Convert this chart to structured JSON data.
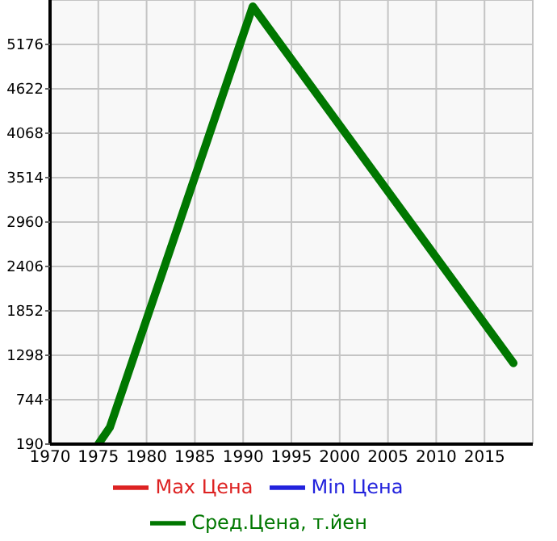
{
  "chart_data": {
    "type": "line",
    "x": [
      1975,
      1976.2,
      1991,
      2018
    ],
    "series": [
      {
        "name": "Max Цена",
        "color": "#dd2222",
        "values": [
          null,
          null,
          null,
          null
        ]
      },
      {
        "name": "Min Цена",
        "color": "#2222dd",
        "values": [
          null,
          null,
          null,
          null
        ]
      },
      {
        "name": "Сред.Цена, т.йен",
        "color": "#007700",
        "values": [
          190,
          400,
          5650,
          1200
        ]
      }
    ],
    "xlim": [
      1970,
      2020
    ],
    "xticks": [
      1970,
      1975,
      1980,
      1985,
      1990,
      1995,
      2000,
      2005,
      2010,
      2015
    ],
    "ylim": [
      190,
      5730
    ],
    "yticks": [
      190,
      744,
      1298,
      1852,
      2406,
      2960,
      3514,
      4068,
      4622,
      5176
    ],
    "grid": true,
    "legend": "bottom",
    "marker": "none",
    "line_style": "solid"
  }
}
